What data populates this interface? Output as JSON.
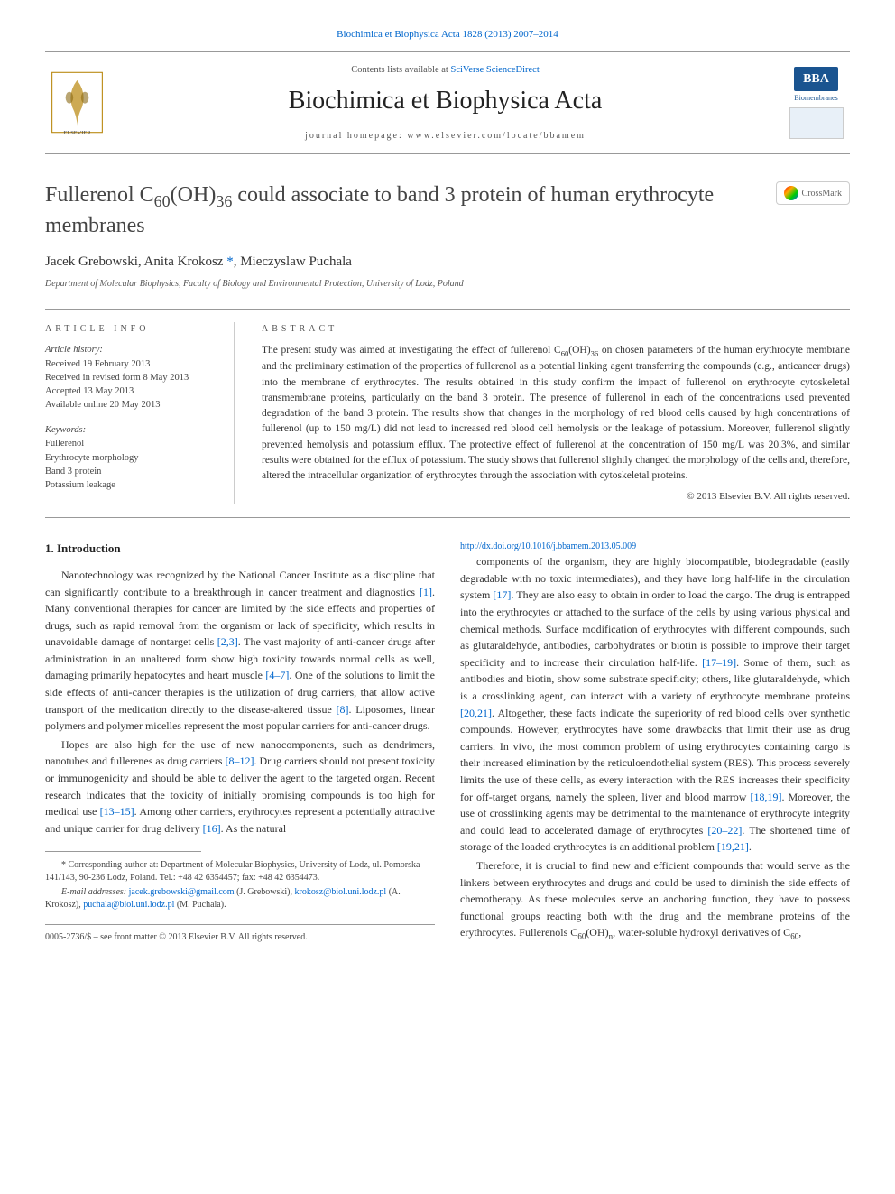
{
  "journal": {
    "top_citation": "Biochimica et Biophysica Acta 1828 (2013) 2007–2014",
    "contents_prefix": "Contents lists available at ",
    "contents_link": "SciVerse ScienceDirect",
    "title": "Biochimica et Biophysica Acta",
    "homepage_label": "journal homepage: www.elsevier.com/locate/bbamem",
    "bba_label": "BBA",
    "bba_sub": "Biomembranes",
    "crossmark": "CrossMark"
  },
  "article": {
    "title_html": "Fullerenol C<sub>60</sub>(OH)<sub>36</sub> could associate to band 3 protein of human erythrocyte membranes",
    "authors_html": "Jacek Grebowski, Anita Krokosz <span class='corr'>*</span>, Mieczyslaw Puchala",
    "affiliation": "Department of Molecular Biophysics, Faculty of Biology and Environmental Protection, University of Lodz, Poland"
  },
  "info": {
    "label": "ARTICLE INFO",
    "history_label": "Article history:",
    "history": [
      "Received 19 February 2013",
      "Received in revised form 8 May 2013",
      "Accepted 13 May 2013",
      "Available online 20 May 2013"
    ],
    "keywords_label": "Keywords:",
    "keywords": [
      "Fullerenol",
      "Erythrocyte morphology",
      "Band 3 protein",
      "Potassium leakage"
    ]
  },
  "abstract": {
    "label": "ABSTRACT",
    "text_html": "The present study was aimed at investigating the effect of fullerenol C<sub>60</sub>(OH)<sub>36</sub> on chosen parameters of the human erythrocyte membrane and the preliminary estimation of the properties of fullerenol as a potential linking agent transferring the compounds (e.g., anticancer drugs) into the membrane of erythrocytes. The results obtained in this study confirm the impact of fullerenol on erythrocyte cytoskeletal transmembrane proteins, particularly on the band 3 protein. The presence of fullerenol in each of the concentrations used prevented degradation of the band 3 protein. The results show that changes in the morphology of red blood cells caused by high concentrations of fullerenol (up to 150 mg/L) did not lead to increased red blood cell hemolysis or the leakage of potassium. Moreover, fullerenol slightly prevented hemolysis and potassium efflux. The protective effect of fullerenol at the concentration of 150 mg/L was 20.3%, and similar results were obtained for the efflux of potassium. The study shows that fullerenol slightly changed the morphology of the cells and, therefore, altered the intracellular organization of erythrocytes through the association with cytoskeletal proteins.",
    "copyright": "© 2013 Elsevier B.V. All rights reserved."
  },
  "body": {
    "intro_heading": "1. Introduction",
    "para1_html": "Nanotechnology was recognized by the National Cancer Institute as a discipline that can significantly contribute to a breakthrough in cancer treatment and diagnostics <span class='ref-link'>[1]</span>. Many conventional therapies for cancer are limited by the side effects and properties of drugs, such as rapid removal from the organism or lack of specificity, which results in unavoidable damage of nontarget cells <span class='ref-link'>[2,3]</span>. The vast majority of anti-cancer drugs after administration in an unaltered form show high toxicity towards normal cells as well, damaging primarily hepatocytes and heart muscle <span class='ref-link'>[4–7]</span>. One of the solutions to limit the side effects of anti-cancer therapies is the utilization of drug carriers, that allow active transport of the medication directly to the disease-altered tissue <span class='ref-link'>[8]</span>. Liposomes, linear polymers and polymer micelles represent the most popular carriers for anti-cancer drugs.",
    "para2_html": "Hopes are also high for the use of new nanocomponents, such as dendrimers, nanotubes and fullerenes as drug carriers <span class='ref-link'>[8–12]</span>. Drug carriers should not present toxicity or immunogenicity and should be able to deliver the agent to the targeted organ. Recent research indicates that the toxicity of initially promising compounds is too high for medical use <span class='ref-link'>[13–15]</span>. Among other carriers, erythrocytes represent a potentially attractive and unique carrier for drug delivery <span class='ref-link'>[16]</span>. As the natural",
    "para3_html": "components of the organism, they are highly biocompatible, biodegradable (easily degradable with no toxic intermediates), and they have long half-life in the circulation system <span class='ref-link'>[17]</span>. They are also easy to obtain in order to load the cargo. The drug is entrapped into the erythrocytes or attached to the surface of the cells by using various physical and chemical methods. Surface modification of erythrocytes with different compounds, such as glutaraldehyde, antibodies, carbohydrates or biotin is possible to improve their target specificity and to increase their circulation half-life. <span class='ref-link'>[17–19]</span>. Some of them, such as antibodies and biotin, show some substrate specificity; others, like glutaraldehyde, which is a crosslinking agent, can interact with a variety of erythrocyte membrane proteins <span class='ref-link'>[20,21]</span>. Altogether, these facts indicate the superiority of red blood cells over synthetic compounds. However, erythrocytes have some drawbacks that limit their use as drug carriers. In vivo, the most common problem of using erythrocytes containing cargo is their increased elimination by the reticuloendothelial system (RES). This process severely limits the use of these cells, as every interaction with the RES increases their specificity for off-target organs, namely the spleen, liver and blood marrow <span class='ref-link'>[18,19]</span>. Moreover, the use of crosslinking agents may be detrimental to the maintenance of erythrocyte integrity and could lead to accelerated damage of erythrocytes <span class='ref-link'>[20–22]</span>. The shortened time of storage of the loaded erythrocytes is an additional problem <span class='ref-link'>[19,21]</span>.",
    "para4_html": "Therefore, it is crucial to find new and efficient compounds that would serve as the linkers between erythrocytes and drugs and could be used to diminish the side effects of chemotherapy. As these molecules serve an anchoring function, they have to possess functional groups reacting both with the drug and the membrane proteins of the erythrocytes. Fullerenols C<sub>60</sub>(OH)<sub>n</sub>, water-soluble hydroxyl derivatives of C<sub>60</sub>,"
  },
  "footnote": {
    "corr_html": "* Corresponding author at: Department of Molecular Biophysics, University of Lodz, ul. Pomorska 141/143, 90-236 Lodz, Poland. Tel.: +48 42 6354457; fax: +48 42 6354473.",
    "emails_label": "E-mail addresses:",
    "emails_html": "<a>jacek.grebowski@gmail.com</a> (J. Grebowski), <a>krokosz@biol.uni.lodz.pl</a> (A. Krokosz), <a>puchala@biol.uni.lodz.pl</a> (M. Puchala)."
  },
  "footer": {
    "line1": "0005-2736/$ – see front matter © 2013 Elsevier B.V. All rights reserved.",
    "doi": "http://dx.doi.org/10.1016/j.bbamem.2013.05.009"
  },
  "colors": {
    "link": "#0066cc",
    "text": "#333333",
    "rule": "#999999",
    "bba": "#1a5490"
  },
  "typography": {
    "journal_title_pt": 28,
    "article_title_pt": 24,
    "body_pt": 12,
    "abstract_pt": 11.5,
    "footnote_pt": 10
  }
}
